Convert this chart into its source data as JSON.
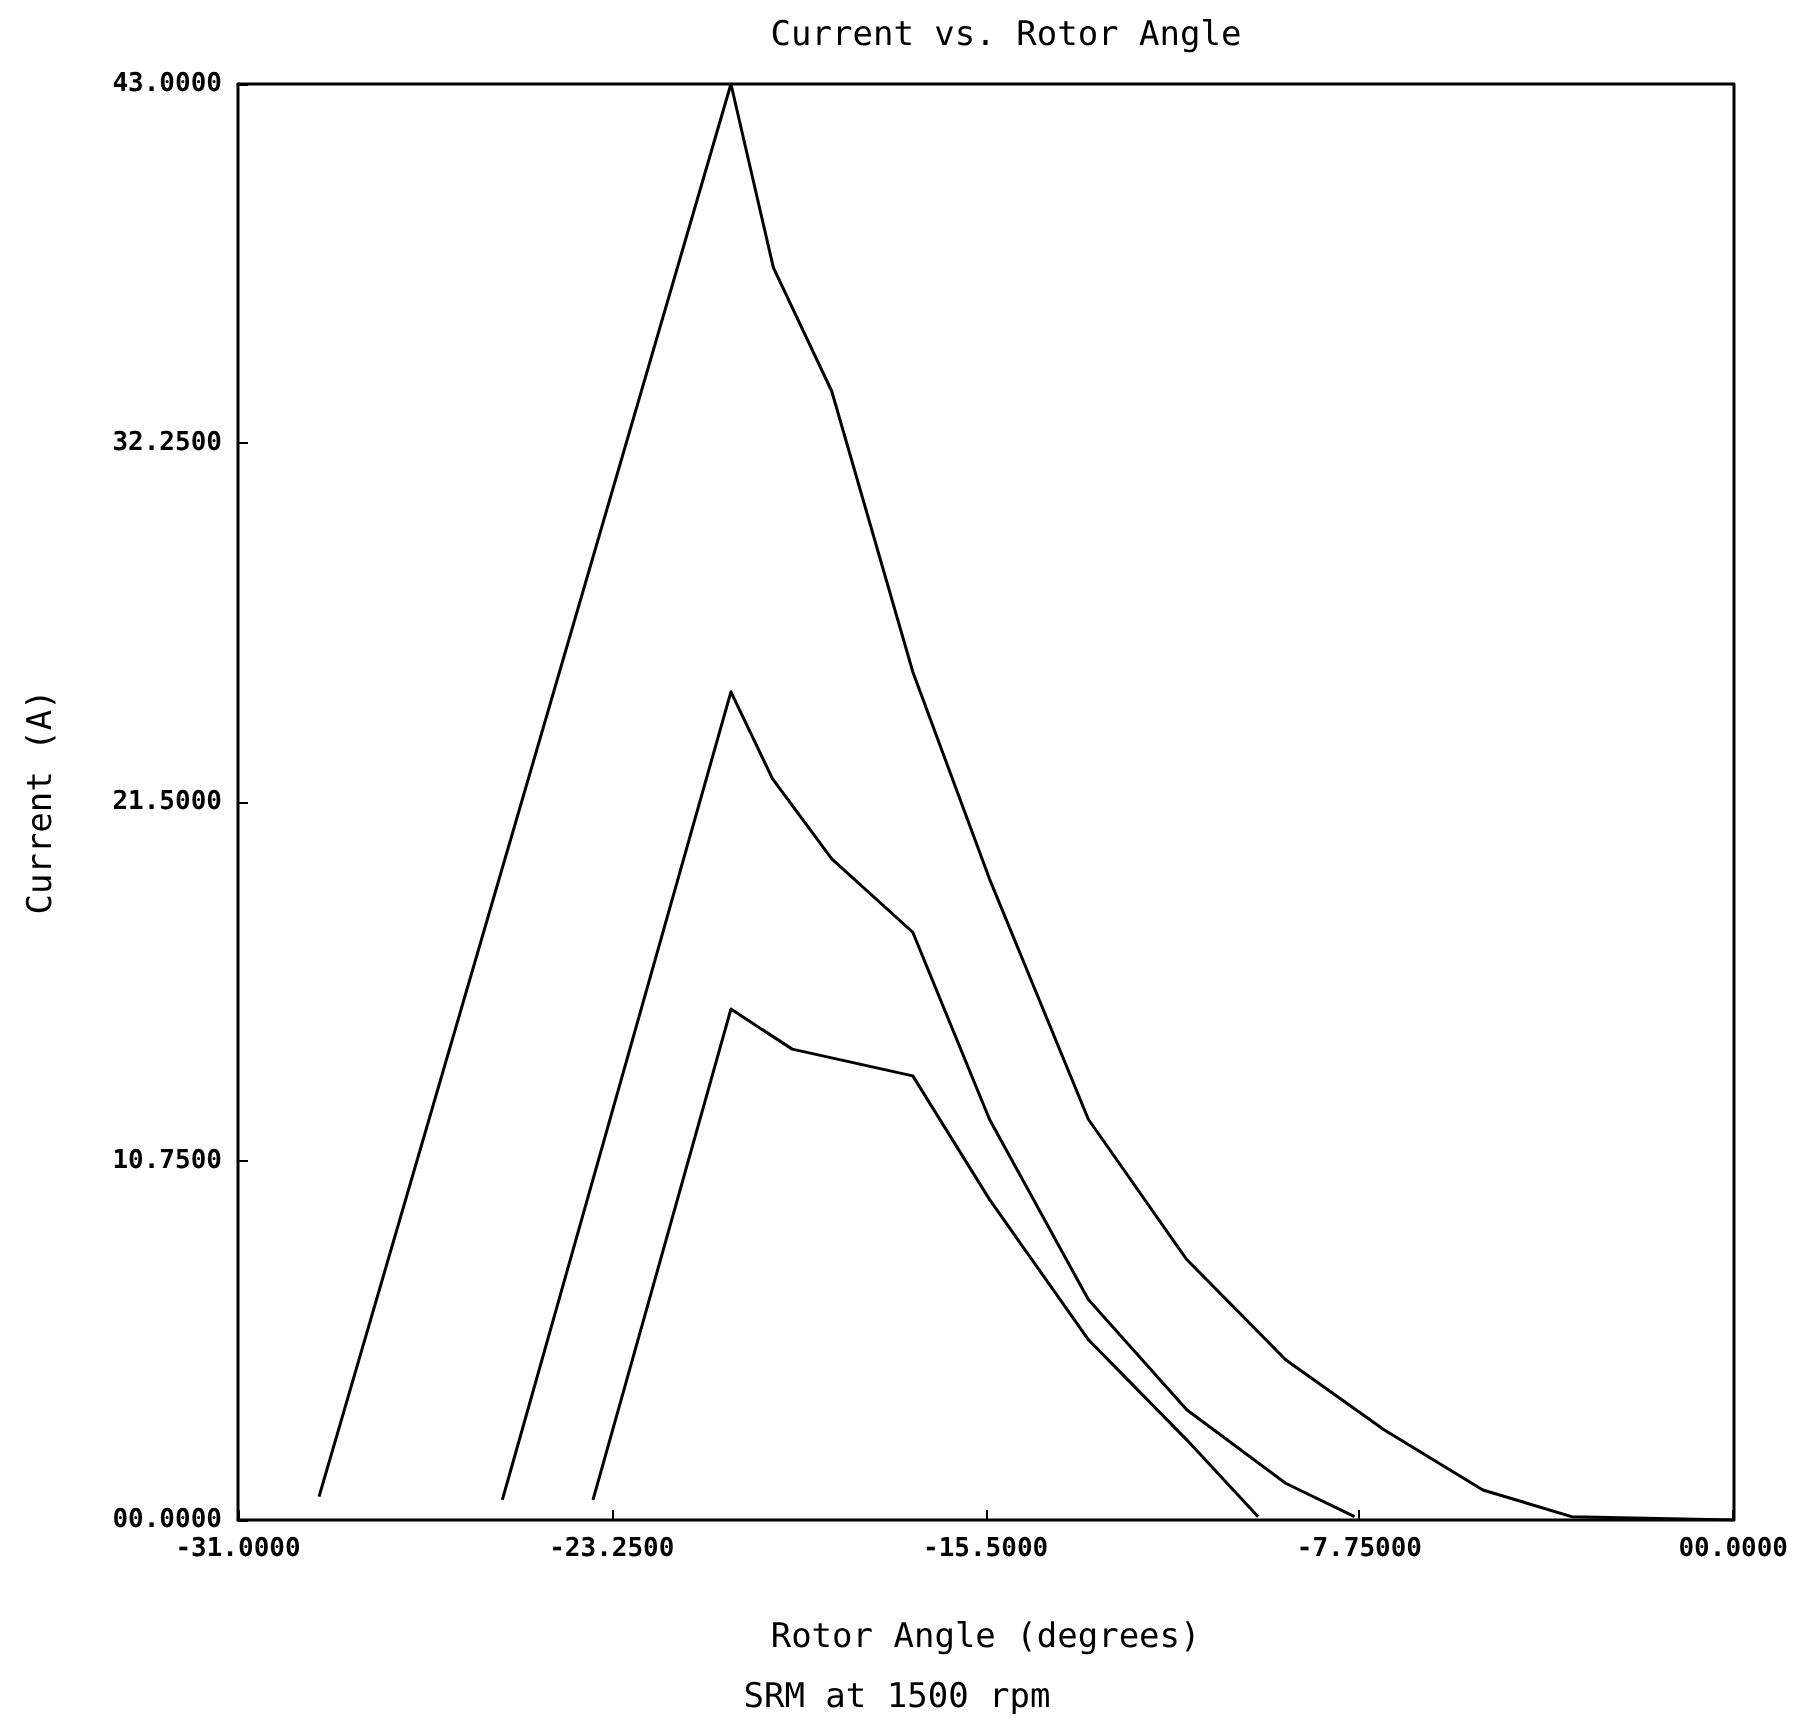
{
  "chart_data": {
    "type": "line",
    "title": "Current vs. Rotor Angle",
    "xlabel": "Rotor Angle (degrees)",
    "ylabel": "Current (A)",
    "annotations": [
      "SRM at 1500 rpm"
    ],
    "series": [
      {
        "color": "#000000",
        "x": [
          -29.32,
          -20.78,
          -19.9,
          -18.69,
          -17.01,
          -15.42,
          -13.37,
          -11.33,
          -9.28,
          -7.24,
          -5.19,
          -3.35,
          0
        ],
        "values": [
          0.7,
          43,
          37.5,
          33.8,
          25.4,
          19.2,
          12,
          7.8,
          4.8,
          2.7,
          0.9,
          0.1,
          0
        ]
      },
      {
        "color": "#000000",
        "x": [
          -25.52,
          -20.78,
          -19.92,
          -18.69,
          -17.01,
          -15.42,
          -13.37,
          -11.33,
          -9.28,
          -7.85
        ],
        "values": [
          0.6,
          24.8,
          22.2,
          19.8,
          17.6,
          12,
          6.6,
          3.3,
          1.1,
          0.1
        ]
      },
      {
        "color": "#000000",
        "x": [
          -23.64,
          -20.78,
          -19.51,
          -17.01,
          -15.42,
          -13.37,
          -11.33,
          -9.85
        ],
        "values": [
          0.6,
          15.3,
          14.1,
          13.3,
          9.6,
          5.4,
          2.4,
          0.1
        ]
      }
    ],
    "xlim": [
      -31,
      0
    ],
    "xticks": [
      {
        "value": -31,
        "label": "-31.0000"
      },
      {
        "value": -23.25,
        "label": "-23.2500"
      },
      {
        "value": -15.5,
        "label": "-15.5000"
      },
      {
        "value": -7.75,
        "label": "-7.75000"
      },
      {
        "value": 0,
        "label": "00.0000"
      }
    ],
    "ylim": [
      0,
      43
    ],
    "yticks": [
      {
        "value": 0,
        "label": "00.0000"
      },
      {
        "value": 10.75,
        "label": "10.7500"
      },
      {
        "value": 21.5,
        "label": "21.5000"
      },
      {
        "value": 32.25,
        "label": "32.2500"
      },
      {
        "value": 43,
        "label": "43.0000"
      }
    ],
    "grid": false,
    "marker": "none",
    "line_style": "solid"
  }
}
